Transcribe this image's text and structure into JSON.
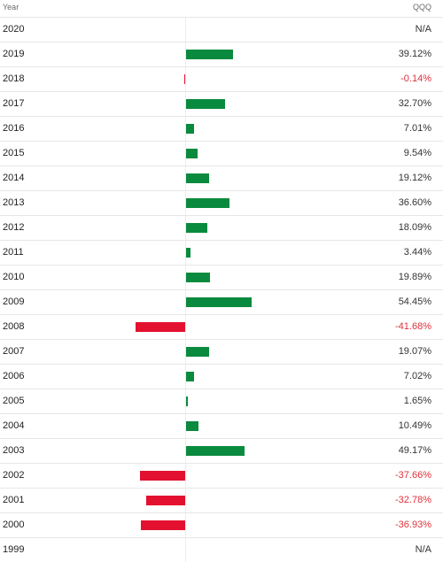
{
  "header": {
    "year_label": "Year",
    "ticker_label": "QQQ"
  },
  "colors": {
    "positive": "#0a8a3e",
    "negative": "#e3112f",
    "negative_text": "#e0303a"
  },
  "chart_data": {
    "type": "bar",
    "orientation": "horizontal",
    "title": "",
    "xlabel": "",
    "ylabel": "",
    "categories": [
      "2020",
      "2019",
      "2018",
      "2017",
      "2016",
      "2015",
      "2014",
      "2013",
      "2012",
      "2011",
      "2010",
      "2009",
      "2008",
      "2007",
      "2006",
      "2005",
      "2004",
      "2003",
      "2002",
      "2001",
      "2000",
      "1999"
    ],
    "values": [
      null,
      39.12,
      -0.14,
      32.7,
      7.01,
      9.54,
      19.12,
      36.6,
      18.09,
      3.44,
      19.89,
      54.45,
      -41.68,
      19.07,
      7.02,
      1.65,
      10.49,
      49.17,
      -37.66,
      -32.78,
      -36.93,
      null
    ],
    "labels": [
      "N/A",
      "39.12%",
      "-0.14%",
      "32.70%",
      "7.01%",
      "9.54%",
      "19.12%",
      "36.60%",
      "18.09%",
      "3.44%",
      "19.89%",
      "54.45%",
      "-41.68%",
      "19.07%",
      "7.02%",
      "1.65%",
      "10.49%",
      "49.17%",
      "-37.66%",
      "-32.78%",
      "-36.93%",
      "N/A"
    ],
    "unit": "%"
  }
}
